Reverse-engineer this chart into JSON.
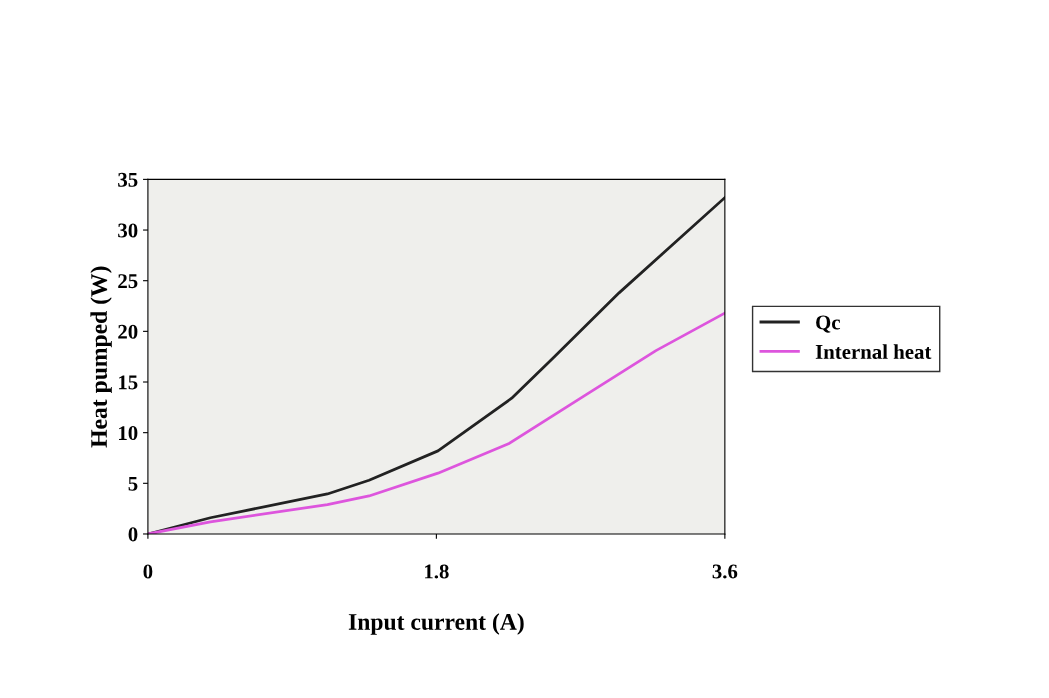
{
  "chart_data": {
    "type": "line",
    "xlabel": "Input current (A)",
    "ylabel": "Heat pumped (W)",
    "xlim": [
      0,
      3.6
    ],
    "xticks": [
      0,
      1.8,
      3.6
    ],
    "ylim": [
      0,
      35
    ],
    "yticks": [
      0,
      5,
      10,
      15,
      20,
      25,
      30,
      35
    ],
    "grid": false,
    "legend": "right",
    "marker": "none",
    "line_style": "solid",
    "series": [
      {
        "name": "Qc",
        "color": "#222222",
        "x": [
          0,
          0.39,
          1.12,
          1.38,
          1.81,
          2.27,
          2.53,
          2.94,
          3.6
        ],
        "values": [
          0,
          1.6,
          3.95,
          5.3,
          8.2,
          13.4,
          17.4,
          23.8,
          33.2
        ]
      },
      {
        "name": "Internal heat",
        "color": "#dd55dd",
        "x": [
          0,
          0.39,
          1.12,
          1.38,
          1.81,
          2.25,
          2.72,
          3.17,
          3.6
        ],
        "values": [
          0,
          1.2,
          2.9,
          3.75,
          6.0,
          8.9,
          13.6,
          18.1,
          21.8
        ]
      }
    ]
  }
}
